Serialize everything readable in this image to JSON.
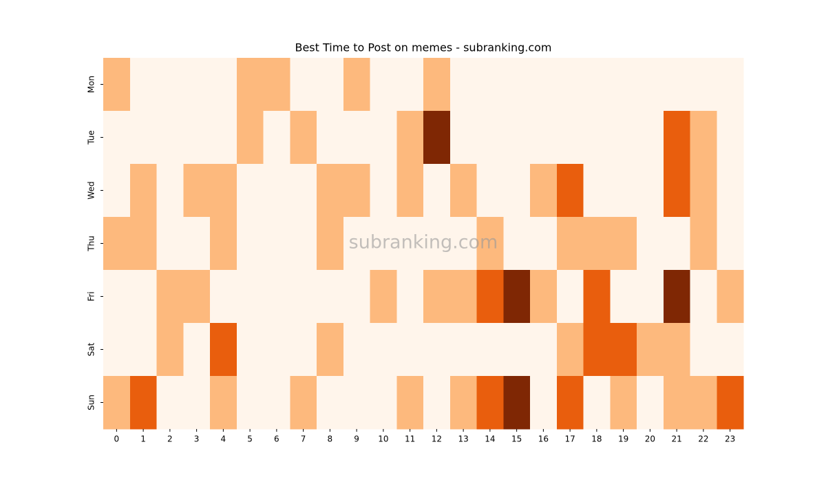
{
  "chart_data": {
    "type": "heatmap",
    "title": "Best Time to Post on memes - subranking.com",
    "watermark": "subranking.com",
    "x": [
      "0",
      "1",
      "2",
      "3",
      "4",
      "5",
      "6",
      "7",
      "8",
      "9",
      "10",
      "11",
      "12",
      "13",
      "14",
      "15",
      "16",
      "17",
      "18",
      "19",
      "20",
      "21",
      "22",
      "23"
    ],
    "y": [
      "Mon",
      "Tue",
      "Wed",
      "Thu",
      "Fri",
      "Sat",
      "Sun"
    ],
    "colors": [
      "#fff5eb",
      "#fdb97d",
      "#e95e0d",
      "#7f2704"
    ],
    "values": [
      [
        1,
        0,
        0,
        0,
        0,
        1,
        1,
        0,
        0,
        1,
        0,
        0,
        1,
        0,
        0,
        0,
        0,
        0,
        0,
        0,
        0,
        0,
        0,
        0
      ],
      [
        0,
        0,
        0,
        0,
        0,
        1,
        0,
        1,
        0,
        0,
        0,
        1,
        3,
        0,
        0,
        0,
        0,
        0,
        0,
        0,
        0,
        2,
        1,
        0
      ],
      [
        0,
        1,
        0,
        1,
        1,
        0,
        0,
        0,
        1,
        1,
        0,
        1,
        0,
        1,
        0,
        0,
        1,
        2,
        0,
        0,
        0,
        2,
        1,
        0
      ],
      [
        1,
        1,
        0,
        0,
        1,
        0,
        0,
        0,
        1,
        0,
        0,
        0,
        0,
        0,
        1,
        0,
        0,
        1,
        1,
        1,
        0,
        0,
        1,
        0
      ],
      [
        0,
        0,
        1,
        1,
        0,
        0,
        0,
        0,
        0,
        0,
        1,
        0,
        1,
        1,
        2,
        3,
        1,
        0,
        2,
        0,
        0,
        3,
        0,
        1
      ],
      [
        0,
        0,
        1,
        0,
        2,
        0,
        0,
        0,
        1,
        0,
        0,
        0,
        0,
        0,
        0,
        0,
        0,
        1,
        2,
        2,
        1,
        1,
        0,
        0
      ],
      [
        1,
        2,
        0,
        0,
        1,
        0,
        0,
        1,
        0,
        0,
        0,
        1,
        0,
        1,
        2,
        3,
        0,
        2,
        0,
        1,
        0,
        1,
        1,
        2
      ]
    ]
  }
}
